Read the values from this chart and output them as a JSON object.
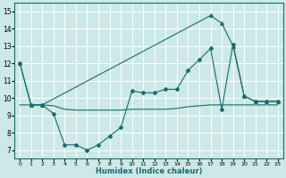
{
  "xlabel": "Humidex (Indice chaleur)",
  "xlim": [
    -0.5,
    23.5
  ],
  "ylim": [
    6.5,
    15.5
  ],
  "yticks": [
    7,
    8,
    9,
    10,
    11,
    12,
    13,
    14,
    15
  ],
  "xticks": [
    0,
    1,
    2,
    3,
    4,
    5,
    6,
    7,
    8,
    9,
    10,
    11,
    12,
    13,
    14,
    15,
    16,
    17,
    18,
    19,
    20,
    21,
    22,
    23
  ],
  "bg_color": "#cce8e8",
  "line_color": "#1a6b6b",
  "grid_color": "#ffffff",
  "line1_x": [
    0,
    1,
    2,
    17,
    18,
    19,
    20,
    21,
    22,
    23
  ],
  "line1_y": [
    12.0,
    9.6,
    9.6,
    14.75,
    14.3,
    13.0,
    10.1,
    9.8,
    9.8,
    9.8
  ],
  "line1_marker": "^",
  "line2_x": [
    0,
    1,
    2,
    3,
    4,
    5,
    6,
    7,
    8,
    9,
    10,
    11,
    12,
    13,
    14,
    15,
    16,
    17,
    18,
    19,
    20,
    21,
    22,
    23
  ],
  "line2_y": [
    12.0,
    9.6,
    9.6,
    9.1,
    7.3,
    7.3,
    7.0,
    7.3,
    7.8,
    8.3,
    10.4,
    10.3,
    10.3,
    10.5,
    10.5,
    11.6,
    12.2,
    12.85,
    9.35,
    13.1,
    10.1,
    9.8,
    9.8,
    9.8
  ],
  "line2_marker": "D",
  "line3_x": [
    0,
    1,
    2,
    3,
    4,
    5,
    6,
    7,
    8,
    9,
    10,
    11,
    12,
    13,
    14,
    15,
    16,
    17,
    18,
    19,
    20,
    21,
    22,
    23
  ],
  "line3_y": [
    9.6,
    9.6,
    9.6,
    9.55,
    9.35,
    9.3,
    9.3,
    9.3,
    9.3,
    9.3,
    9.35,
    9.35,
    9.35,
    9.35,
    9.4,
    9.5,
    9.55,
    9.6,
    9.6,
    9.6,
    9.6,
    9.6,
    9.6,
    9.6
  ],
  "line3_marker": null,
  "figsize": [
    3.2,
    2.0
  ],
  "dpi": 100
}
